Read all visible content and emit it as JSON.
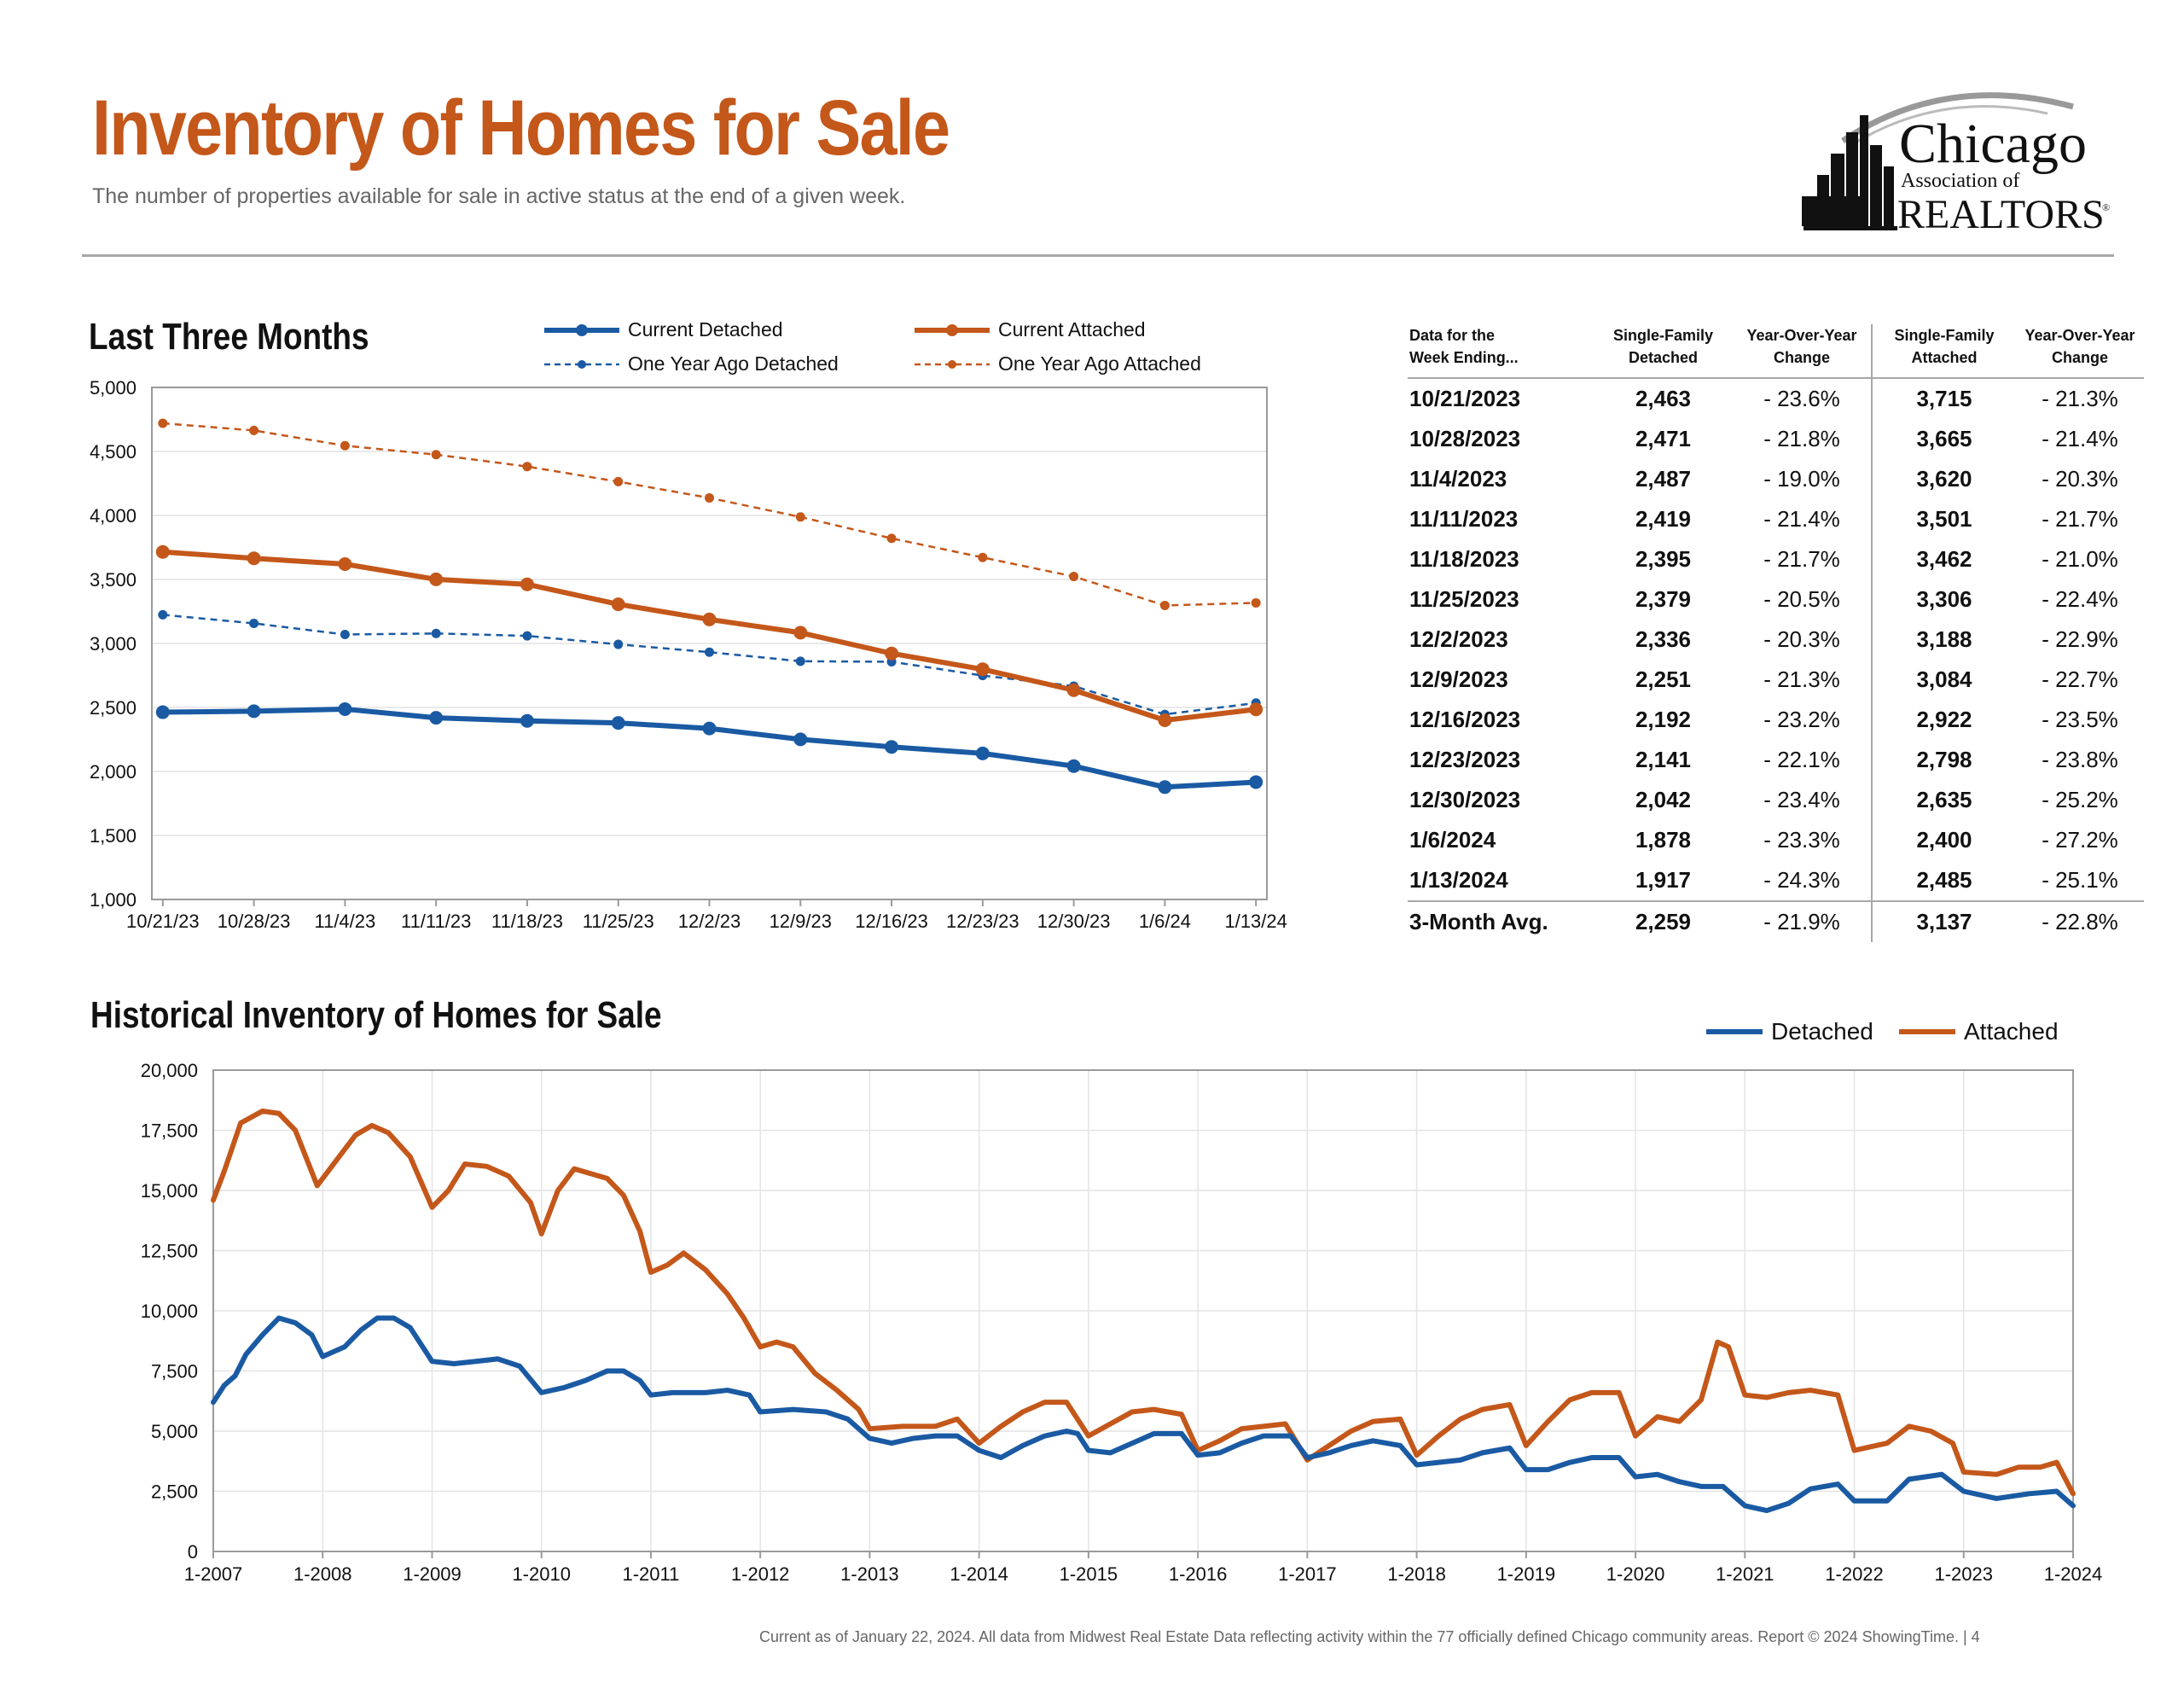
{
  "header": {
    "title": "Inventory of Homes for Sale",
    "subtitle": "The number of properties available for sale in active status at the end of a given week.",
    "logo": {
      "line1": "Chicago",
      "line2": "Association of",
      "line3": "REALTORS",
      "mark": "®"
    }
  },
  "colors": {
    "detached": "#1a5aa3",
    "attached": "#c4571a",
    "rule": "#a8a8a8",
    "title": "#c4571a"
  },
  "chart_data": [
    {
      "type": "line",
      "title": "Last Three Months",
      "categories": [
        "10/21/23",
        "10/28/23",
        "11/4/23",
        "11/11/23",
        "11/18/23",
        "11/25/23",
        "12/2/23",
        "12/9/23",
        "12/16/23",
        "12/23/23",
        "12/30/23",
        "1/6/24",
        "1/13/24"
      ],
      "ylim": [
        1000,
        5000
      ],
      "yticks": [
        1000,
        1500,
        2000,
        2500,
        3000,
        3500,
        4000,
        4500,
        5000
      ],
      "ytick_labels": [
        "1,000",
        "1,500",
        "2,000",
        "2,500",
        "3,000",
        "3,500",
        "4,000",
        "4,500",
        "5,000"
      ],
      "grid": true,
      "legend": "top",
      "series": [
        {
          "name": "Current Detached",
          "style": "solid",
          "color": "#1a5aa3",
          "values": [
            2463,
            2471,
            2487,
            2419,
            2395,
            2379,
            2336,
            2251,
            2192,
            2141,
            2042,
            1878,
            1917
          ]
        },
        {
          "name": "Current Attached",
          "style": "solid",
          "color": "#c4571a",
          "values": [
            3715,
            3665,
            3620,
            3501,
            3462,
            3306,
            3188,
            3084,
            2922,
            2798,
            2635,
            2400,
            2485
          ]
        },
        {
          "name": "One Year Ago Detached",
          "style": "dashed",
          "color": "#1a5aa3",
          "values": [
            3224,
            3157,
            3070,
            3078,
            3059,
            2993,
            2932,
            2861,
            2857,
            2749,
            2667,
            2446,
            2535
          ]
        },
        {
          "name": "One Year Ago Attached",
          "style": "dashed",
          "color": "#c4571a",
          "values": [
            4720,
            4664,
            4545,
            4475,
            4382,
            4264,
            4137,
            3988,
            3821,
            3672,
            3523,
            3297,
            3317
          ]
        }
      ]
    },
    {
      "type": "line",
      "title": "Historical Inventory of Homes for Sale",
      "xlim": [
        2007,
        2024
      ],
      "x_tick_labels": [
        "1-2007",
        "1-2008",
        "1-2009",
        "1-2010",
        "1-2011",
        "1-2012",
        "1-2013",
        "1-2014",
        "1-2015",
        "1-2016",
        "1-2017",
        "1-2018",
        "1-2019",
        "1-2020",
        "1-2021",
        "1-2022",
        "1-2023",
        "1-2024"
      ],
      "ylim": [
        0,
        20000
      ],
      "yticks": [
        0,
        2500,
        5000,
        7500,
        10000,
        12500,
        15000,
        17500,
        20000
      ],
      "ytick_labels": [
        "0",
        "2,500",
        "5,000",
        "7,500",
        "10,000",
        "12,500",
        "15,000",
        "17,500",
        "20,000"
      ],
      "grid": true,
      "legend": "top-right",
      "series": [
        {
          "name": "Detached",
          "color": "#1a5aa3",
          "points": [
            [
              2007.0,
              6200
            ],
            [
              2007.1,
              6900
            ],
            [
              2007.2,
              7300
            ],
            [
              2007.3,
              8200
            ],
            [
              2007.45,
              9000
            ],
            [
              2007.6,
              9700
            ],
            [
              2007.75,
              9500
            ],
            [
              2007.9,
              9000
            ],
            [
              2008.0,
              8100
            ],
            [
              2008.2,
              8500
            ],
            [
              2008.35,
              9200
            ],
            [
              2008.5,
              9700
            ],
            [
              2008.65,
              9700
            ],
            [
              2008.8,
              9300
            ],
            [
              2009.0,
              7900
            ],
            [
              2009.2,
              7800
            ],
            [
              2009.4,
              7900
            ],
            [
              2009.6,
              8000
            ],
            [
              2009.8,
              7700
            ],
            [
              2010.0,
              6600
            ],
            [
              2010.2,
              6800
            ],
            [
              2010.4,
              7100
            ],
            [
              2010.6,
              7500
            ],
            [
              2010.75,
              7500
            ],
            [
              2010.9,
              7100
            ],
            [
              2011.0,
              6500
            ],
            [
              2011.2,
              6600
            ],
            [
              2011.5,
              6600
            ],
            [
              2011.7,
              6700
            ],
            [
              2011.9,
              6500
            ],
            [
              2012.0,
              5800
            ],
            [
              2012.3,
              5900
            ],
            [
              2012.6,
              5800
            ],
            [
              2012.8,
              5500
            ],
            [
              2013.0,
              4700
            ],
            [
              2013.2,
              4500
            ],
            [
              2013.4,
              4700
            ],
            [
              2013.6,
              4800
            ],
            [
              2013.8,
              4800
            ],
            [
              2014.0,
              4200
            ],
            [
              2014.2,
              3900
            ],
            [
              2014.4,
              4400
            ],
            [
              2014.6,
              4800
            ],
            [
              2014.8,
              5000
            ],
            [
              2014.9,
              4900
            ],
            [
              2015.0,
              4200
            ],
            [
              2015.2,
              4100
            ],
            [
              2015.4,
              4500
            ],
            [
              2015.6,
              4900
            ],
            [
              2015.85,
              4900
            ],
            [
              2016.0,
              4000
            ],
            [
              2016.2,
              4100
            ],
            [
              2016.4,
              4500
            ],
            [
              2016.6,
              4800
            ],
            [
              2016.85,
              4800
            ],
            [
              2017.0,
              3900
            ],
            [
              2017.2,
              4100
            ],
            [
              2017.4,
              4400
            ],
            [
              2017.6,
              4600
            ],
            [
              2017.85,
              4400
            ],
            [
              2018.0,
              3600
            ],
            [
              2018.2,
              3700
            ],
            [
              2018.4,
              3800
            ],
            [
              2018.6,
              4100
            ],
            [
              2018.85,
              4300
            ],
            [
              2019.0,
              3400
            ],
            [
              2019.2,
              3400
            ],
            [
              2019.4,
              3700
            ],
            [
              2019.6,
              3900
            ],
            [
              2019.85,
              3900
            ],
            [
              2020.0,
              3100
            ],
            [
              2020.2,
              3200
            ],
            [
              2020.4,
              2900
            ],
            [
              2020.6,
              2700
            ],
            [
              2020.8,
              2700
            ],
            [
              2021.0,
              1900
            ],
            [
              2021.2,
              1700
            ],
            [
              2021.4,
              2000
            ],
            [
              2021.6,
              2600
            ],
            [
              2021.85,
              2800
            ],
            [
              2022.0,
              2100
            ],
            [
              2022.3,
              2100
            ],
            [
              2022.5,
              3000
            ],
            [
              2022.8,
              3200
            ],
            [
              2023.0,
              2500
            ],
            [
              2023.3,
              2200
            ],
            [
              2023.6,
              2400
            ],
            [
              2023.85,
              2500
            ],
            [
              2024.0,
              1900
            ]
          ]
        },
        {
          "name": "Attached",
          "color": "#c4571a",
          "points": [
            [
              2007.0,
              14600
            ],
            [
              2007.1,
              15800
            ],
            [
              2007.25,
              17800
            ],
            [
              2007.45,
              18300
            ],
            [
              2007.6,
              18200
            ],
            [
              2007.75,
              17500
            ],
            [
              2007.95,
              15200
            ],
            [
              2008.1,
              16100
            ],
            [
              2008.3,
              17300
            ],
            [
              2008.45,
              17700
            ],
            [
              2008.6,
              17400
            ],
            [
              2008.8,
              16400
            ],
            [
              2009.0,
              14300
            ],
            [
              2009.15,
              15000
            ],
            [
              2009.3,
              16100
            ],
            [
              2009.5,
              16000
            ],
            [
              2009.7,
              15600
            ],
            [
              2009.9,
              14500
            ],
            [
              2010.0,
              13200
            ],
            [
              2010.15,
              15000
            ],
            [
              2010.3,
              15900
            ],
            [
              2010.45,
              15700
            ],
            [
              2010.6,
              15500
            ],
            [
              2010.75,
              14800
            ],
            [
              2010.9,
              13300
            ],
            [
              2011.0,
              11600
            ],
            [
              2011.15,
              11900
            ],
            [
              2011.3,
              12400
            ],
            [
              2011.5,
              11700
            ],
            [
              2011.7,
              10700
            ],
            [
              2011.85,
              9700
            ],
            [
              2012.0,
              8500
            ],
            [
              2012.15,
              8700
            ],
            [
              2012.3,
              8500
            ],
            [
              2012.5,
              7400
            ],
            [
              2012.7,
              6700
            ],
            [
              2012.9,
              5900
            ],
            [
              2013.0,
              5100
            ],
            [
              2013.3,
              5200
            ],
            [
              2013.6,
              5200
            ],
            [
              2013.8,
              5500
            ],
            [
              2014.0,
              4500
            ],
            [
              2014.2,
              5200
            ],
            [
              2014.4,
              5800
            ],
            [
              2014.6,
              6200
            ],
            [
              2014.8,
              6200
            ],
            [
              2015.0,
              4800
            ],
            [
              2015.2,
              5300
            ],
            [
              2015.4,
              5800
            ],
            [
              2015.6,
              5900
            ],
            [
              2015.85,
              5700
            ],
            [
              2016.0,
              4200
            ],
            [
              2016.2,
              4600
            ],
            [
              2016.4,
              5100
            ],
            [
              2016.6,
              5200
            ],
            [
              2016.8,
              5300
            ],
            [
              2017.0,
              3800
            ],
            [
              2017.2,
              4400
            ],
            [
              2017.4,
              5000
            ],
            [
              2017.6,
              5400
            ],
            [
              2017.85,
              5500
            ],
            [
              2018.0,
              4000
            ],
            [
              2018.2,
              4800
            ],
            [
              2018.4,
              5500
            ],
            [
              2018.6,
              5900
            ],
            [
              2018.85,
              6100
            ],
            [
              2019.0,
              4400
            ],
            [
              2019.2,
              5400
            ],
            [
              2019.4,
              6300
            ],
            [
              2019.6,
              6600
            ],
            [
              2019.85,
              6600
            ],
            [
              2020.0,
              4800
            ],
            [
              2020.2,
              5600
            ],
            [
              2020.4,
              5400
            ],
            [
              2020.6,
              6300
            ],
            [
              2020.75,
              8700
            ],
            [
              2020.85,
              8500
            ],
            [
              2021.0,
              6500
            ],
            [
              2021.2,
              6400
            ],
            [
              2021.4,
              6600
            ],
            [
              2021.6,
              6700
            ],
            [
              2021.85,
              6500
            ],
            [
              2022.0,
              4200
            ],
            [
              2022.3,
              4500
            ],
            [
              2022.5,
              5200
            ],
            [
              2022.7,
              5000
            ],
            [
              2022.9,
              4500
            ],
            [
              2023.0,
              3300
            ],
            [
              2023.3,
              3200
            ],
            [
              2023.5,
              3500
            ],
            [
              2023.7,
              3500
            ],
            [
              2023.85,
              3700
            ],
            [
              2024.0,
              2400
            ]
          ]
        }
      ]
    }
  ],
  "table": {
    "headers": [
      "Data for the\nWeek Ending...",
      "Single-Family\nDetached",
      "Year-Over-Year\nChange",
      "Single-Family\nAttached",
      "Year-Over-Year\nChange"
    ],
    "rows": [
      [
        "10/21/2023",
        "2,463",
        "- 23.6%",
        "3,715",
        "- 21.3%"
      ],
      [
        "10/28/2023",
        "2,471",
        "- 21.8%",
        "3,665",
        "- 21.4%"
      ],
      [
        "11/4/2023",
        "2,487",
        "- 19.0%",
        "3,620",
        "- 20.3%"
      ],
      [
        "11/11/2023",
        "2,419",
        "- 21.4%",
        "3,501",
        "- 21.7%"
      ],
      [
        "11/18/2023",
        "2,395",
        "- 21.7%",
        "3,462",
        "- 21.0%"
      ],
      [
        "11/25/2023",
        "2,379",
        "- 20.5%",
        "3,306",
        "- 22.4%"
      ],
      [
        "12/2/2023",
        "2,336",
        "- 20.3%",
        "3,188",
        "- 22.9%"
      ],
      [
        "12/9/2023",
        "2,251",
        "- 21.3%",
        "3,084",
        "- 22.7%"
      ],
      [
        "12/16/2023",
        "2,192",
        "- 23.2%",
        "2,922",
        "- 23.5%"
      ],
      [
        "12/23/2023",
        "2,141",
        "- 22.1%",
        "2,798",
        "- 23.8%"
      ],
      [
        "12/30/2023",
        "2,042",
        "- 23.4%",
        "2,635",
        "- 25.2%"
      ],
      [
        "1/6/2024",
        "1,878",
        "- 23.3%",
        "2,400",
        "- 27.2%"
      ],
      [
        "1/13/2024",
        "1,917",
        "- 24.3%",
        "2,485",
        "- 25.1%"
      ]
    ],
    "avg": [
      "3-Month Avg.",
      "2,259",
      "- 21.9%",
      "3,137",
      "- 22.8%"
    ]
  },
  "footnote": "Current as of January 22, 2024. All data from Midwest Real Estate Data reflecting activity within the 77 officially defined Chicago community areas. Report © 2024 ShowingTime.  |  4"
}
